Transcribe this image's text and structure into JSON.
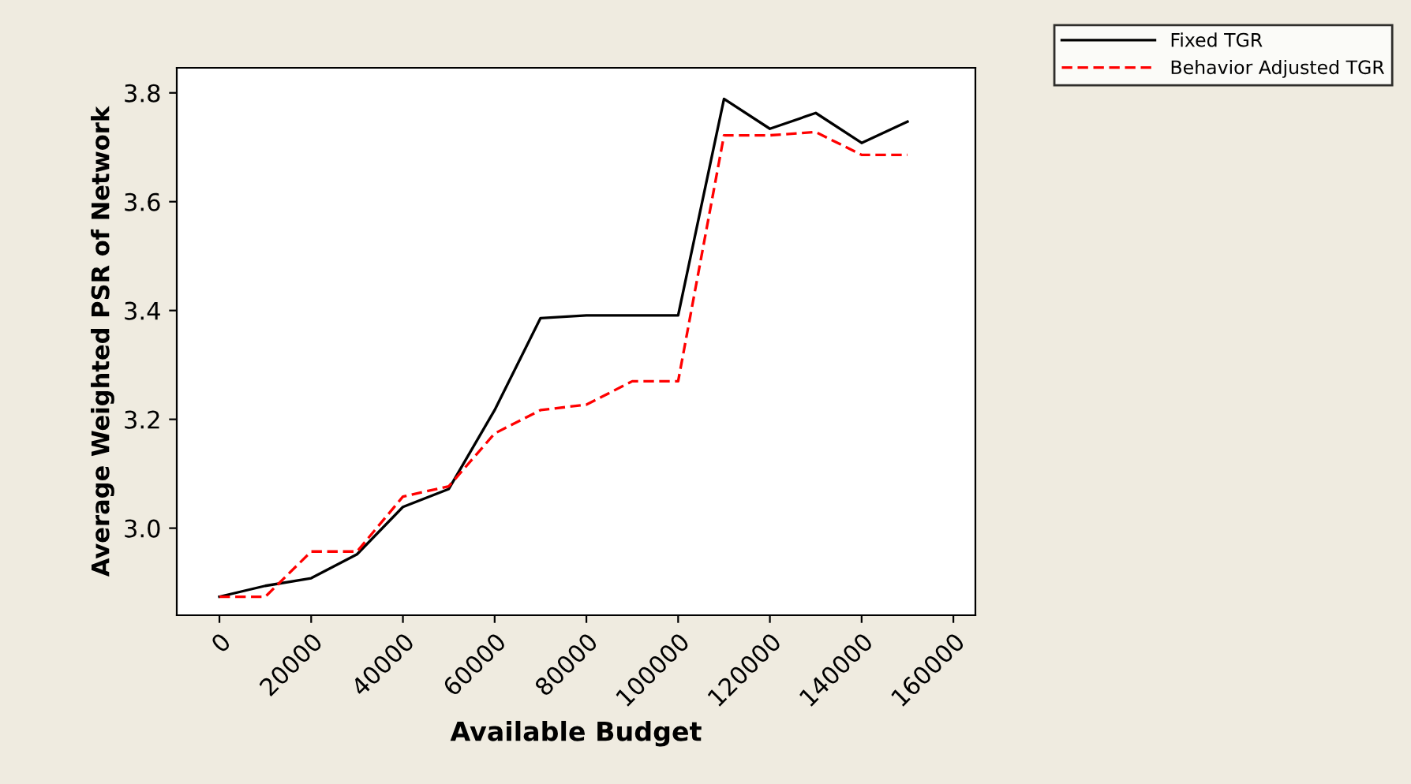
{
  "chart_data": {
    "type": "line",
    "xlabel": "Available Budget",
    "ylabel": "Average Weighted PSR of Network",
    "x": [
      0,
      10000,
      20000,
      30000,
      40000,
      50000,
      60000,
      70000,
      80000,
      90000,
      100000,
      110000,
      120000,
      130000,
      140000,
      150000
    ],
    "series": [
      {
        "name": "Fixed TGR",
        "color": "#000000",
        "line_style": "solid",
        "values": [
          2.874,
          2.894,
          2.908,
          2.952,
          3.039,
          3.072,
          3.217,
          3.386,
          3.391,
          3.391,
          3.391,
          3.789,
          3.734,
          3.763,
          3.708,
          3.747
        ]
      },
      {
        "name": "Behavior Adjusted TGR",
        "color": "#ff0000",
        "line_style": "dashed",
        "values": [
          2.874,
          2.874,
          2.957,
          2.957,
          3.058,
          3.077,
          3.174,
          3.217,
          3.227,
          3.27,
          3.27,
          3.722,
          3.722,
          3.728,
          3.686,
          3.686
        ]
      }
    ],
    "xlim": [
      -9300,
      164800
    ],
    "ylim": [
      2.84,
      3.846
    ],
    "xticks": [
      0,
      20000,
      40000,
      60000,
      80000,
      100000,
      120000,
      140000,
      160000
    ],
    "yticks": [
      {
        "value": 3.0,
        "label": "3.0"
      },
      {
        "value": 3.2,
        "label": "3.2"
      },
      {
        "value": 3.4,
        "label": "3.4"
      },
      {
        "value": 3.6,
        "label": "3.6"
      },
      {
        "value": 3.8,
        "label": "3.8"
      }
    ],
    "grid": false,
    "legend": "top right",
    "marker": "none"
  }
}
